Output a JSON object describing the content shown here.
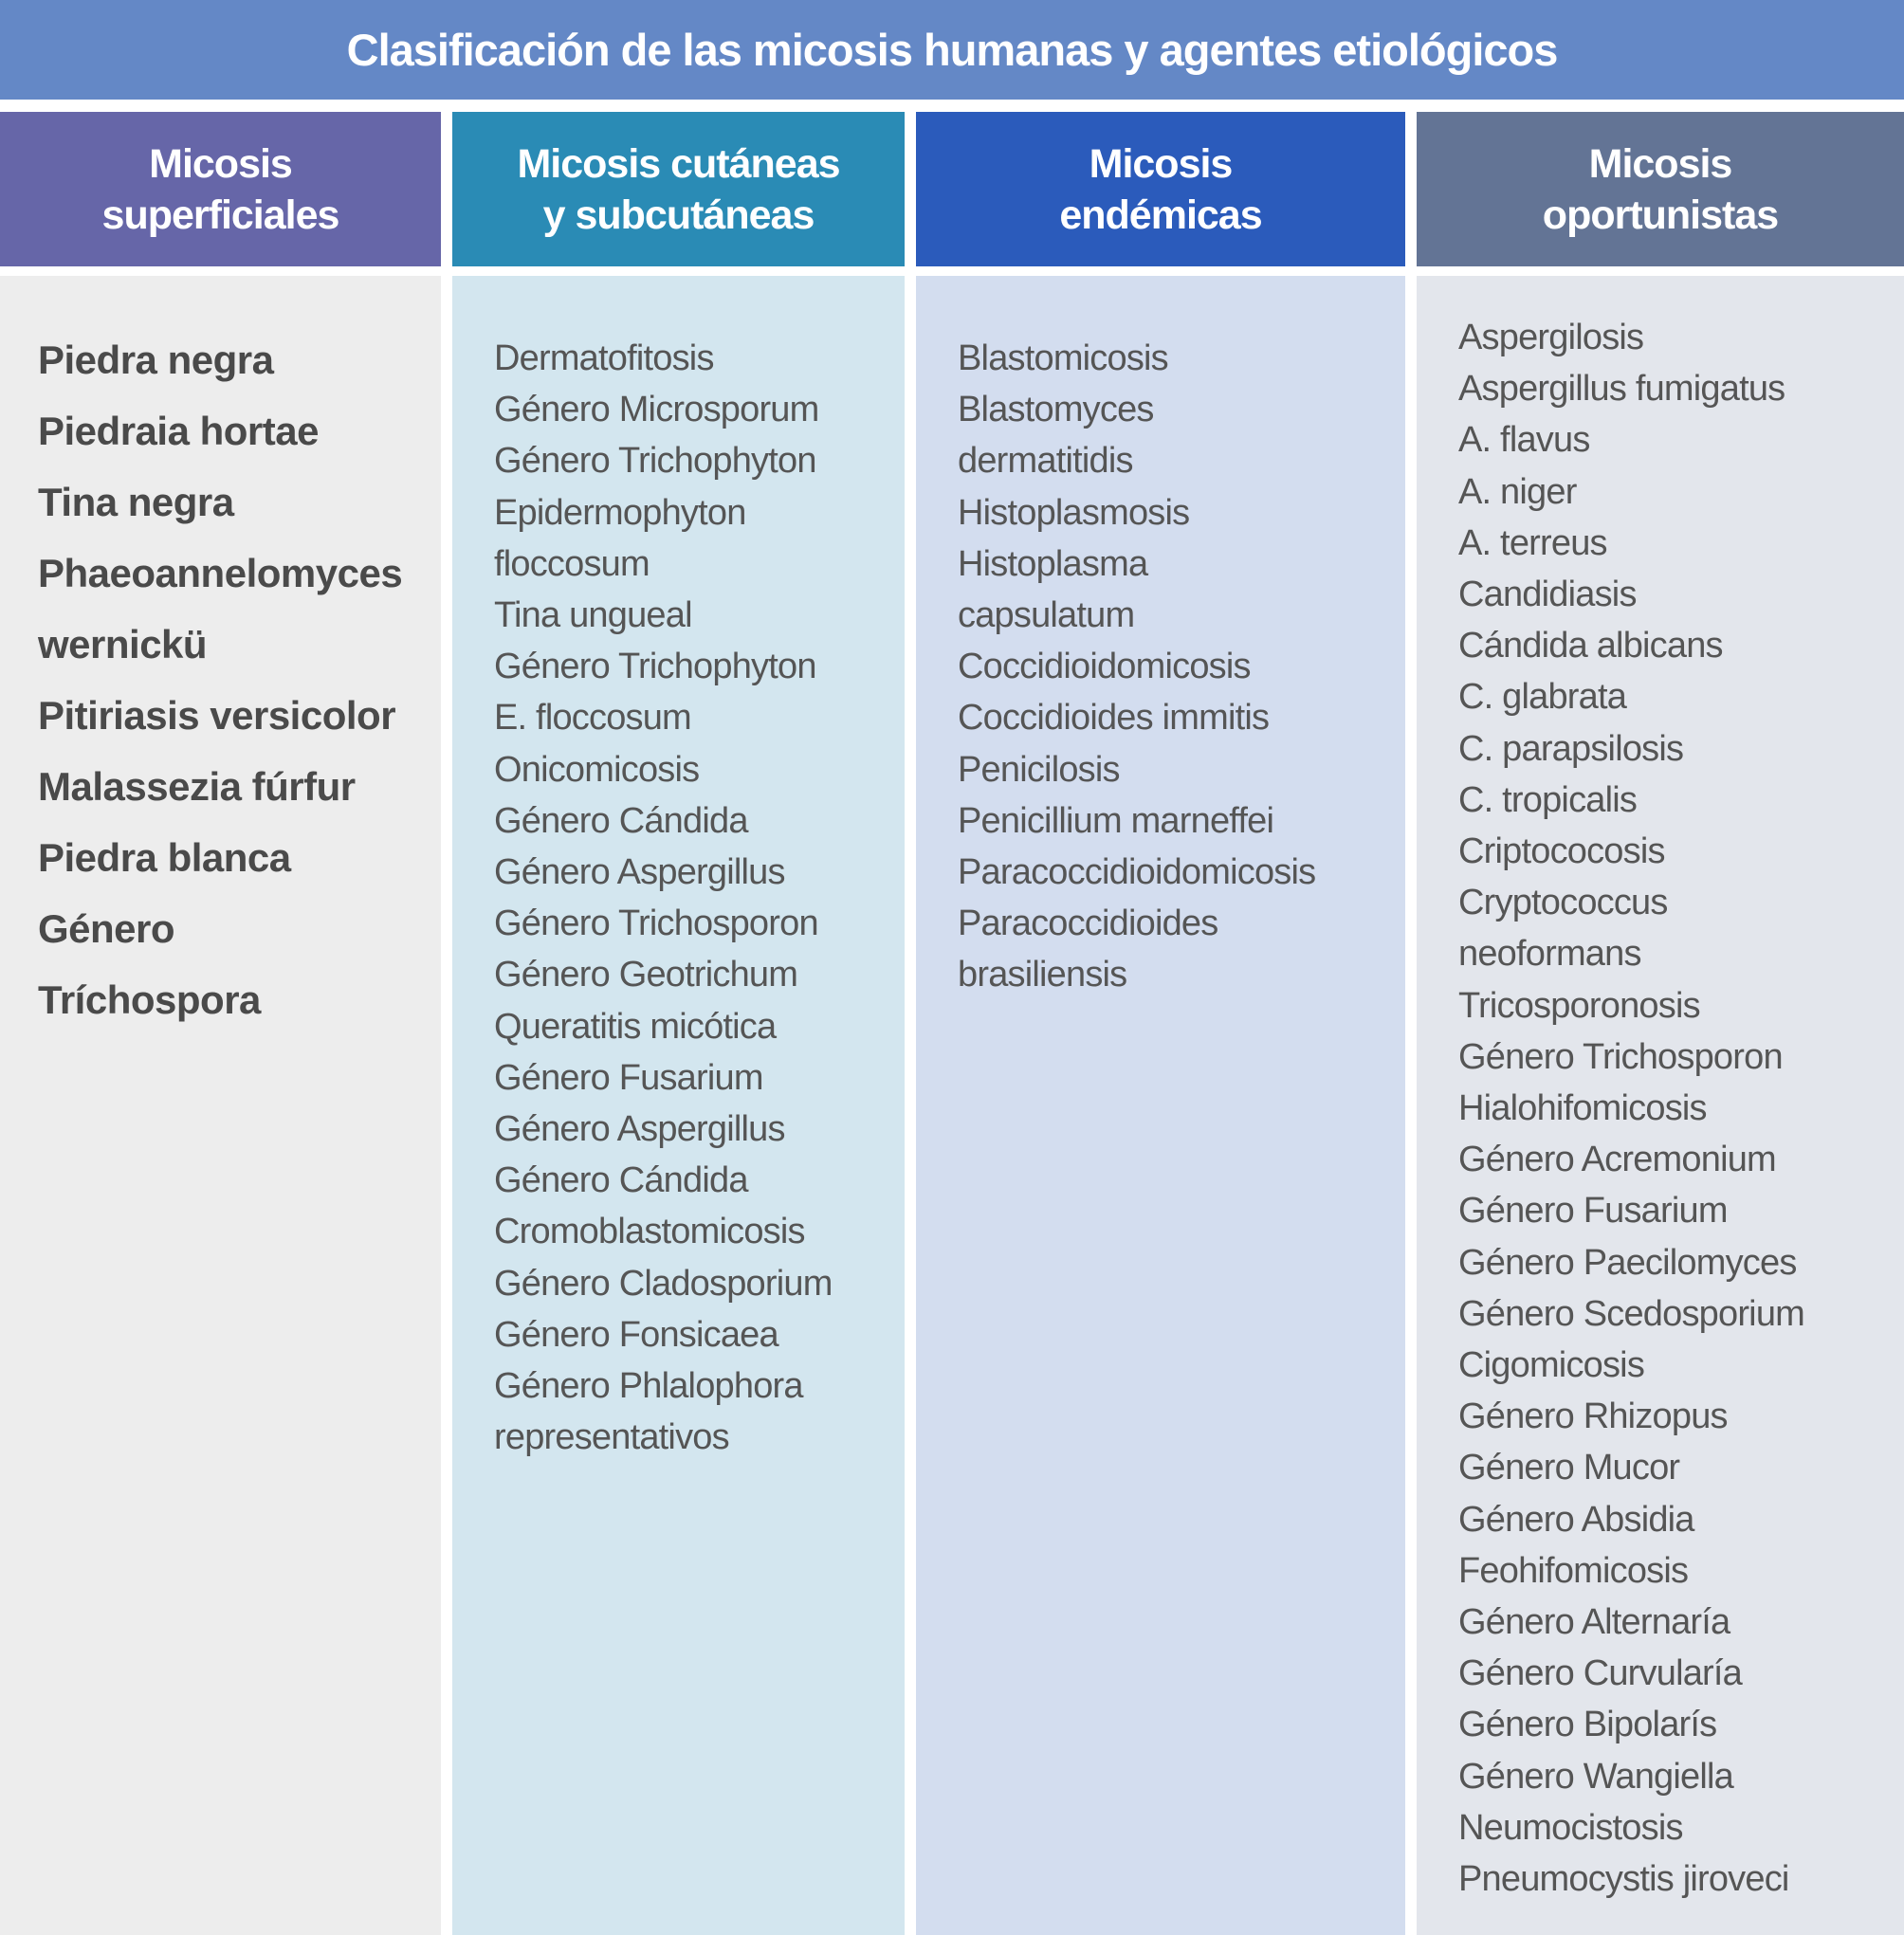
{
  "title": "Clasificación de las micosis humanas y agentes etiológicos",
  "columns": [
    {
      "header": "Micosis\nsuperficiales",
      "items": [
        "Piedra negra",
        "Piedraia hortae",
        "Tina negra",
        "Phaeoannelomyces",
        "wernickü",
        "Pitiriasis versicolor",
        "Malassezia fúrfur",
        "Piedra blanca",
        "Género",
        "Tríchospora"
      ]
    },
    {
      "header": "Micosis cutáneas\ny subcutáneas",
      "items": [
        "Dermatofitosis",
        "Género Microsporum",
        "Género Trichophyton",
        "Epidermophyton",
        "floccosum",
        "Tina ungueal",
        "Género Trichophyton",
        "E. floccosum",
        "Onicomicosis",
        "Género Cándida",
        "Género Aspergillus",
        "Género Trichosporon",
        "Género Geotrichum",
        "Queratitis micótica",
        "Género Fusarium",
        "Género Aspergillus",
        "Género Cándida",
        "Cromoblastomicosis",
        "Género Cladosporium",
        "Género Fonsicaea",
        "Género Phlalophora",
        "representativos"
      ]
    },
    {
      "header": "Micosis\nendémicas",
      "items": [
        "Blastomicosis",
        "Blastomyces",
        "dermatitidis",
        "Histoplasmosis",
        "Histoplasma",
        "capsulatum",
        "Coccidioidomicosis",
        "Coccidioides immitis",
        "Penicilosis",
        "Penicillium marneffei",
        "Paracoccidioidomicosis",
        "Paracoccidioides",
        "brasiliensis"
      ]
    },
    {
      "header": "Micosis\noportunistas",
      "items": [
        "Aspergilosis",
        "Aspergillus fumigatus",
        "A. flavus",
        "A. niger",
        "A. terreus",
        "Candidiasis",
        "Cándida albicans",
        "C. glabrata",
        "C. parapsilosis",
        "C. tropicalis",
        "Criptococosis",
        "Cryptococcus",
        "neoformans",
        "Tricosporonosis",
        "Género Trichosporon",
        "Hialohifomicosis",
        "Género Acremonium",
        "Género Fusarium",
        "Género Paecilomyces",
        "Género Scedosporium",
        "Cigomicosis",
        "Género Rhizopus",
        "Género Mucor",
        "Género Absidia",
        "Feohifomicosis",
        "Género Alternaría",
        "Género Curvularía",
        "Género Bipolarís",
        "Género Wangiella",
        "Neumocistosis",
        "Pneumocystis jiroveci"
      ]
    }
  ]
}
